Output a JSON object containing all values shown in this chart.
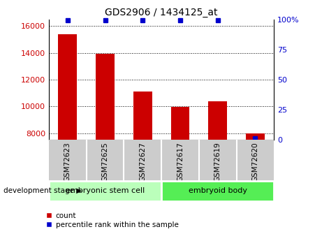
{
  "title": "GDS2906 / 1434125_at",
  "categories": [
    "GSM72623",
    "GSM72625",
    "GSM72627",
    "GSM72617",
    "GSM72619",
    "GSM72620"
  ],
  "counts": [
    15400,
    13900,
    11100,
    9950,
    10400,
    7950
  ],
  "percentile_ranks": [
    99,
    99,
    99,
    99,
    99,
    1
  ],
  "ylim_left": [
    7500,
    16500
  ],
  "ylim_right": [
    0,
    100
  ],
  "yticks_left": [
    8000,
    10000,
    12000,
    14000,
    16000
  ],
  "yticks_right": [
    0,
    25,
    50,
    75,
    100
  ],
  "bar_color": "#cc0000",
  "dot_color": "#0000cc",
  "group1_label": "embryonic stem cell",
  "group2_label": "embryoid body",
  "group1_color": "#bbffbb",
  "group2_color": "#55ee55",
  "tick_label_color_left": "#cc0000",
  "tick_label_color_right": "#0000cc",
  "stage_label": "development stage",
  "legend_count_label": "count",
  "legend_pct_label": "percentile rank within the sample",
  "group1_indices": [
    0,
    1,
    2
  ],
  "group2_indices": [
    3,
    4,
    5
  ],
  "xtick_bg_color": "#cccccc",
  "xtick_divider_color": "#ffffff"
}
